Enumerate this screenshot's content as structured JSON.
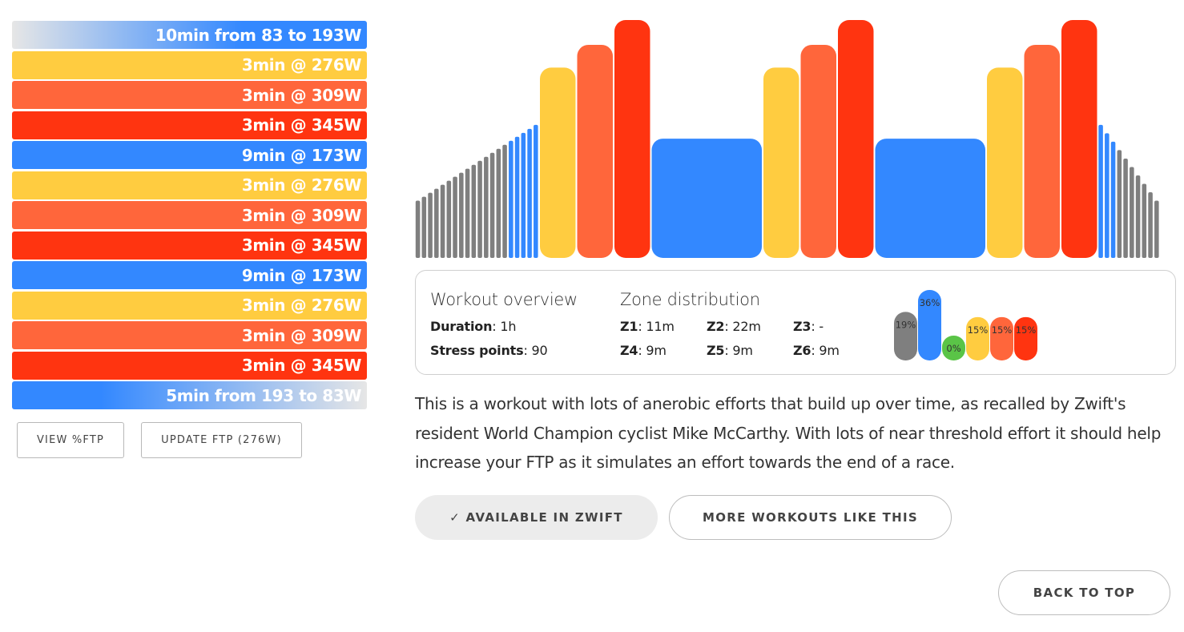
{
  "intervals": [
    {
      "label": "10min from 83 to 193W",
      "kind": "ramp-up",
      "zone_color": "#3388ff"
    },
    {
      "label": "3min @ 276W",
      "kind": "steady",
      "zone_color": "#ffcc40"
    },
    {
      "label": "3min @ 309W",
      "kind": "steady",
      "zone_color": "#ff663b"
    },
    {
      "label": "3min @ 345W",
      "kind": "steady",
      "zone_color": "#ff3410"
    },
    {
      "label": "9min @ 173W",
      "kind": "steady",
      "zone_color": "#3388ff"
    },
    {
      "label": "3min @ 276W",
      "kind": "steady",
      "zone_color": "#ffcc40"
    },
    {
      "label": "3min @ 309W",
      "kind": "steady",
      "zone_color": "#ff663b"
    },
    {
      "label": "3min @ 345W",
      "kind": "steady",
      "zone_color": "#ff3410"
    },
    {
      "label": "9min @ 173W",
      "kind": "steady",
      "zone_color": "#3388ff"
    },
    {
      "label": "3min @ 276W",
      "kind": "steady",
      "zone_color": "#ffcc40"
    },
    {
      "label": "3min @ 309W",
      "kind": "steady",
      "zone_color": "#ff663b"
    },
    {
      "label": "3min @ 345W",
      "kind": "steady",
      "zone_color": "#ff3410"
    },
    {
      "label": "5min from 193 to 83W",
      "kind": "ramp-down",
      "zone_color": "#3388ff"
    }
  ],
  "buttons": {
    "view_ftp": "VIEW %FTP",
    "update_ftp": "UPDATE FTP (276W)",
    "available": "✓ AVAILABLE IN ZWIFT",
    "more_workouts": "MORE WORKOUTS LIKE THIS",
    "back_to_top": "BACK TO TOP"
  },
  "overview": {
    "title": "Workout overview",
    "duration_label": "Duration",
    "duration_value": "1h",
    "stress_label": "Stress points",
    "stress_value": "90"
  },
  "zones": {
    "title": "Zone distribution",
    "items": [
      {
        "label": "Z1",
        "value": "11m"
      },
      {
        "label": "Z2",
        "value": "22m"
      },
      {
        "label": "Z3",
        "value": "-"
      },
      {
        "label": "Z4",
        "value": "9m"
      },
      {
        "label": "Z5",
        "value": "9m"
      },
      {
        "label": "Z6",
        "value": "9m"
      }
    ]
  },
  "zone_chart": {
    "type": "bar",
    "values": [
      19,
      36,
      0,
      15,
      15,
      15
    ],
    "labels": [
      "19%",
      "36%",
      "0%",
      "15%",
      "15%",
      "15%"
    ],
    "colors": [
      "#7f7f7f",
      "#3388ff",
      "#5ac447",
      "#ffcc40",
      "#ff663b",
      "#ff3410"
    ]
  },
  "workout_profile": {
    "segments": [
      {
        "type": "ramp",
        "duration_min": 10,
        "from_w": 83,
        "to_w": 193
      },
      {
        "type": "steady",
        "duration_min": 3,
        "power_w": 276
      },
      {
        "type": "steady",
        "duration_min": 3,
        "power_w": 309
      },
      {
        "type": "steady",
        "duration_min": 3,
        "power_w": 345
      },
      {
        "type": "steady",
        "duration_min": 9,
        "power_w": 173
      },
      {
        "type": "steady",
        "duration_min": 3,
        "power_w": 276
      },
      {
        "type": "steady",
        "duration_min": 3,
        "power_w": 309
      },
      {
        "type": "steady",
        "duration_min": 3,
        "power_w": 345
      },
      {
        "type": "steady",
        "duration_min": 9,
        "power_w": 173
      },
      {
        "type": "steady",
        "duration_min": 3,
        "power_w": 276
      },
      {
        "type": "steady",
        "duration_min": 3,
        "power_w": 309
      },
      {
        "type": "steady",
        "duration_min": 3,
        "power_w": 345
      },
      {
        "type": "ramp",
        "duration_min": 5,
        "from_w": 193,
        "to_w": 83
      }
    ],
    "ftp_w": 276,
    "zone_colors": {
      "z1": "#7f7f7f",
      "z2": "#3388ff",
      "z3": "#5ac447",
      "z4": "#ffcc40",
      "z5": "#ff663b",
      "z6": "#ff3410"
    }
  },
  "description": "This is a workout with lots of anerobic efforts that build up over time, as recalled by Zwift's resident World Champion cyclist Mike McCarthy. With lots of near threshold effort it should help increase your FTP as it simulates an effort towards the end of a race."
}
